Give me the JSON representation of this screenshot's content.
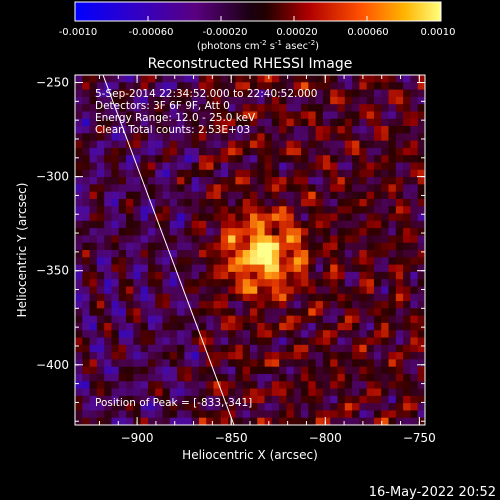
{
  "colorbar": {
    "tick_labels": [
      "-0.0010",
      "-0.00060",
      "-0.00020",
      "0.00020",
      "0.00060",
      "0.0010"
    ],
    "range": [
      -0.001,
      0.001
    ],
    "units_text": "(photons cm",
    "units_exp1": "-2",
    "units_mid": " s",
    "units_exp2": "-1",
    "units_mid2": " asec",
    "units_exp3": "-2",
    "units_end": ")"
  },
  "image": {
    "title": "Reconstructed RHESSI Image",
    "info_lines": [
      "5-Sep-2014 22:34:52.000 to 22:40:52.000",
      "Detectors: 3F 6F 9F, Att 0",
      "Energy Range: 12.0 - 25.0 keV",
      "Clean    Total counts: 2.53E+03"
    ],
    "peak_label": "Position of Peak = [-833,-341]",
    "peak": [
      -833,
      -341
    ]
  },
  "axes": {
    "xlabel": "Heliocentric X (arcsec)",
    "ylabel": "Heliocentric Y (arcsec)",
    "x_range": [
      -933,
      -747
    ],
    "y_range": [
      -432,
      -246
    ],
    "x_ticks": [
      {
        "value": -900,
        "label": "−900"
      },
      {
        "value": -850,
        "label": "−850"
      },
      {
        "value": -800,
        "label": "−800"
      },
      {
        "value": -750,
        "label": "−750"
      }
    ],
    "y_ticks": [
      {
        "value": -250,
        "label": "−250"
      },
      {
        "value": -300,
        "label": "−300"
      },
      {
        "value": -350,
        "label": "−350"
      },
      {
        "value": -400,
        "label": "−400"
      }
    ]
  },
  "timestamp": "16-May-2022 20:52"
}
